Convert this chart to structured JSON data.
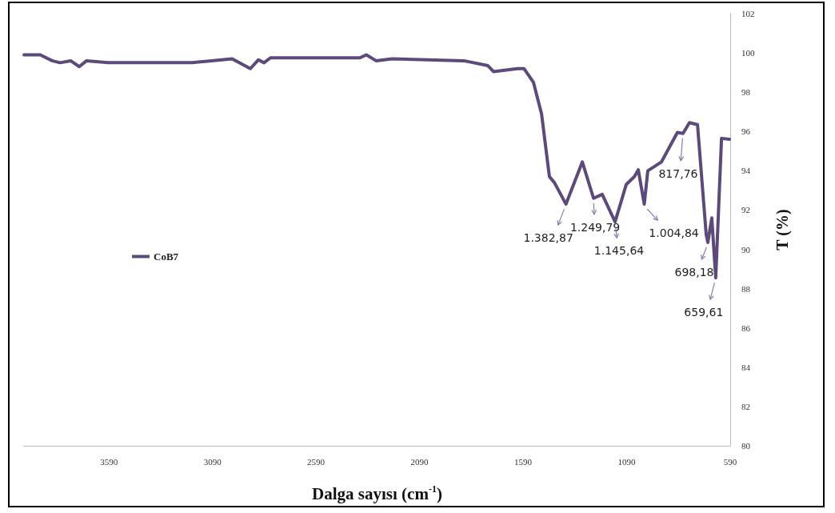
{
  "chart_data": {
    "type": "line",
    "xlabel": "Dalga sayısı (cm$^{-1}$)",
    "ylabel": "T (%)",
    "xlim": [
      4000,
      590
    ],
    "xticks": [
      3590,
      3090,
      2590,
      2090,
      1590,
      1090,
      590
    ],
    "ylim": [
      80,
      102
    ],
    "yticks": [
      80,
      82,
      84,
      86,
      88,
      90,
      92,
      94,
      96,
      98,
      100,
      102
    ],
    "grid": false,
    "legend": "left",
    "marker": "none",
    "line_style": "solid",
    "series": [
      {
        "name": "CoB7",
        "color": "#5b4a7a",
        "x": [
          4000,
          3922,
          3864,
          3826,
          3775,
          3733,
          3698,
          3594,
          3189,
          2995,
          2907,
          2868,
          2841,
          2810,
          2378,
          2347,
          2300,
          2223,
          1876,
          1760,
          1733,
          1617,
          1586,
          1540,
          1501,
          1463,
          1439,
          1383,
          1304,
          1250,
          1208,
          1146,
          1092,
          1053,
          1034,
          1005,
          988,
          922,
          845,
          818,
          787,
          748,
          706,
          698,
          679,
          660,
          632,
          594
        ],
        "values": [
          99.9,
          99.9,
          99.6,
          99.5,
          99.6,
          99.3,
          99.6,
          99.5,
          99.5,
          99.7,
          99.2,
          99.65,
          99.5,
          99.75,
          99.75,
          99.9,
          99.6,
          99.7,
          99.6,
          99.35,
          99.05,
          99.2,
          99.2,
          98.5,
          96.9,
          93.7,
          93.4,
          92.3,
          94.45,
          92.6,
          92.8,
          91.4,
          93.3,
          93.7,
          94.05,
          92.3,
          94.0,
          94.45,
          95.95,
          95.9,
          96.45,
          96.35,
          90.75,
          90.35,
          91.6,
          88.55,
          95.65,
          95.6
        ]
      }
    ],
    "annotations": [
      {
        "text": "1.382,87",
        "x": 1383,
        "y": 92.3
      },
      {
        "text": "1.249,79",
        "x": 1250,
        "y": 92.6
      },
      {
        "text": "1.145,64",
        "x": 1146,
        "y": 91.4
      },
      {
        "text": "1.004,84",
        "x": 1005,
        "y": 92.3
      },
      {
        "text": "817,76",
        "x": 818,
        "y": 95.9
      },
      {
        "text": "698,18",
        "x": 698,
        "y": 90.35
      },
      {
        "text": "659,61",
        "x": 660,
        "y": 88.55
      }
    ]
  }
}
